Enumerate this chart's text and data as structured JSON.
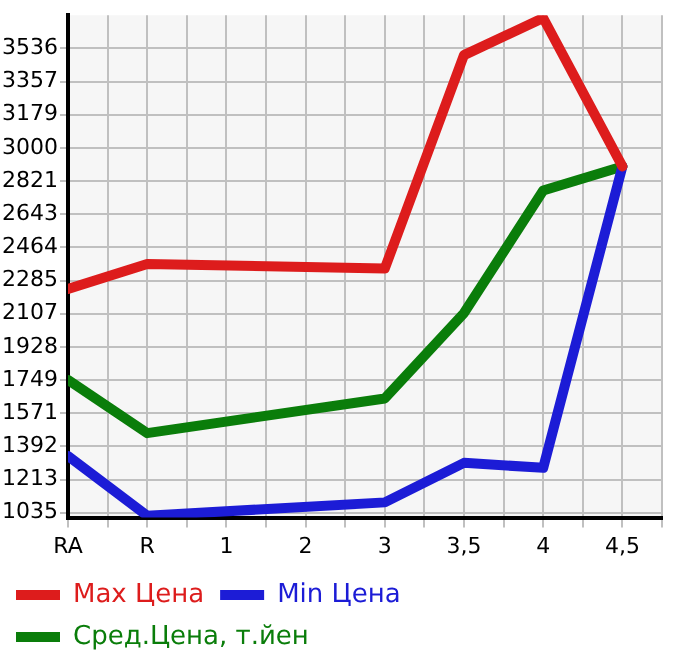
{
  "chart_data": {
    "type": "line",
    "categories": [
      "RA",
      "R",
      "1",
      "2",
      "3",
      "3,5",
      "4",
      "4,5"
    ],
    "series": [
      {
        "name": "Max Цена",
        "color": "#dd1c1c",
        "values": [
          2240,
          2375,
          null,
          null,
          2350,
          3500,
          3700,
          2900
        ]
      },
      {
        "name": "Min Цена",
        "color": "#1c1cd6",
        "values": [
          1340,
          1018,
          null,
          null,
          1090,
          1303,
          1276,
          2900
        ]
      },
      {
        "name": "Сред.Цена, т.йен",
        "color": "#0a7d0a",
        "values": [
          1750,
          1463,
          null,
          null,
          1650,
          2110,
          2770,
          2900
        ]
      }
    ],
    "ylim": [
      1008,
      3715
    ],
    "yticks": [
      1035,
      1213,
      1392,
      1571,
      1749,
      1928,
      2107,
      2285,
      2464,
      2643,
      2821,
      3000,
      3179,
      3357,
      3536
    ],
    "grid": true,
    "legend": "bottom",
    "marker": "none",
    "line_style": "solid"
  }
}
